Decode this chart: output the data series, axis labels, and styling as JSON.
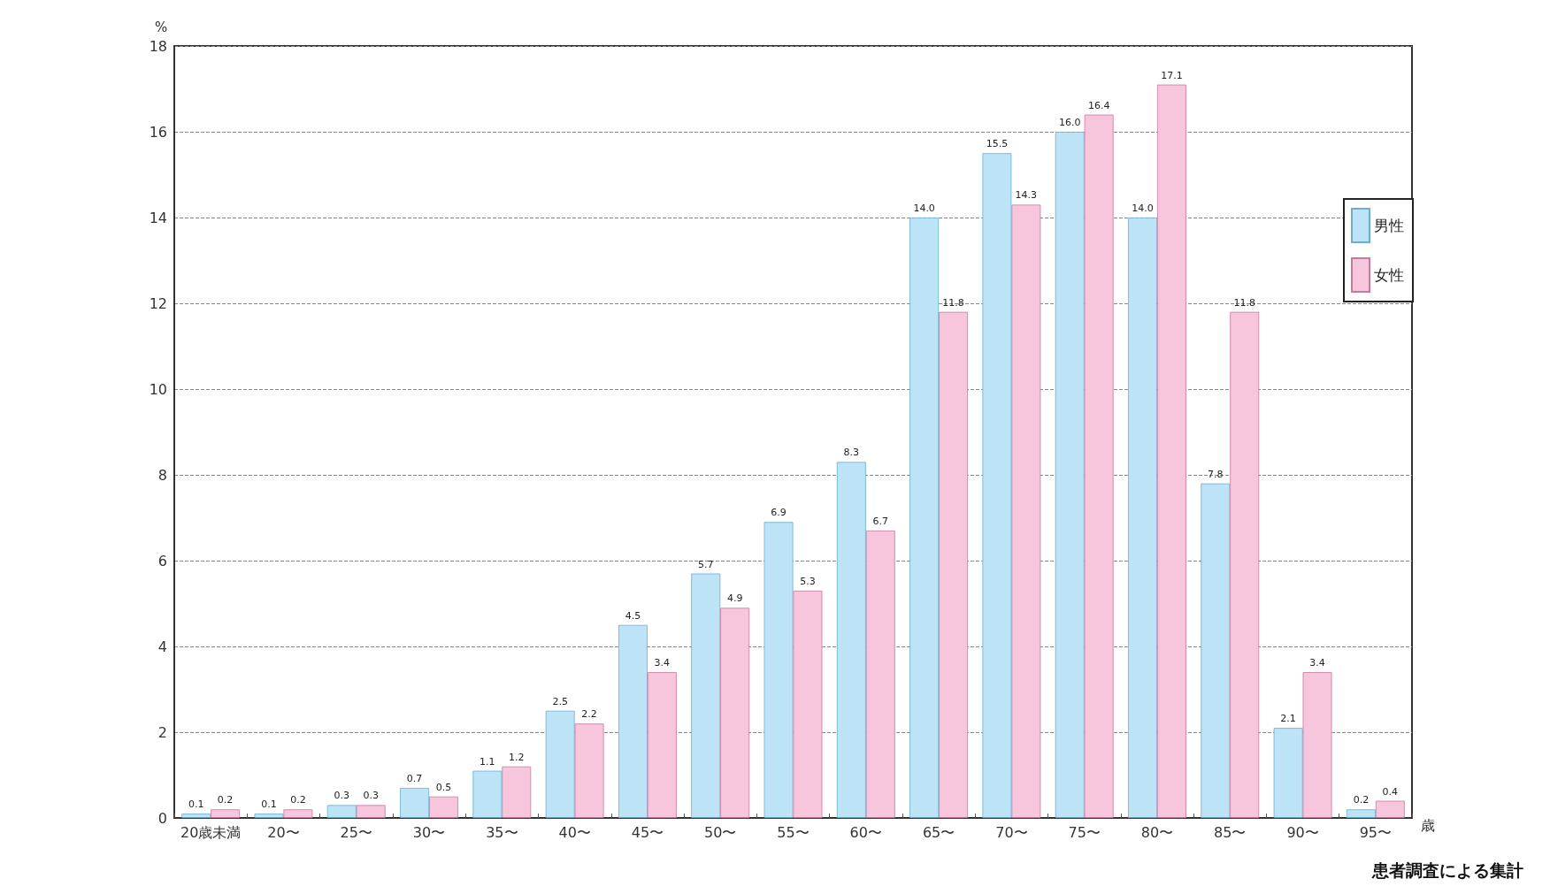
{
  "chart_data": {
    "type": "bar",
    "ylabel": "%",
    "xlabel": "歳",
    "annotations": [
      "患者調査による集計"
    ],
    "categories": [
      "20歳未満",
      "20〜",
      "25〜",
      "30〜",
      "35〜",
      "40〜",
      "45〜",
      "50〜",
      "55〜",
      "60〜",
      "65〜",
      "70〜",
      "75〜",
      "80〜",
      "85〜",
      "90〜",
      "95〜"
    ],
    "series": [
      {
        "name": "男性",
        "color": "#bde3f7",
        "values": [
          0.1,
          0.1,
          0.3,
          0.7,
          1.1,
          2.5,
          4.5,
          5.7,
          6.9,
          8.3,
          14.0,
          15.5,
          16.0,
          14.0,
          7.8,
          2.1,
          0.2
        ],
        "value_labels": [
          "0.1",
          "0.1",
          "0.3",
          "0.7",
          "1.1",
          "2.5",
          "4.5",
          "5.7",
          "6.9",
          "8.3",
          "14.0",
          "15.5",
          "16.0",
          "14.0",
          "7.8",
          "2.1",
          "0.2"
        ]
      },
      {
        "name": "女性",
        "color": "#f7c5dc",
        "values": [
          0.2,
          0.2,
          0.3,
          0.5,
          1.2,
          2.2,
          3.4,
          4.9,
          5.3,
          6.7,
          11.8,
          14.3,
          16.4,
          17.1,
          11.8,
          3.4,
          0.4
        ],
        "value_labels": [
          "0.2",
          "0.2",
          "0.3",
          "0.5",
          "1.2",
          "2.2",
          "3.4",
          "4.9",
          "5.3",
          "6.7",
          "11.8",
          "14.3",
          "16.4",
          "17.1",
          "11.8",
          "3.4",
          "0.4"
        ]
      }
    ],
    "ylim": [
      0,
      18
    ],
    "yticks": [
      0,
      2,
      4,
      6,
      8,
      10,
      12,
      14,
      16,
      18
    ],
    "grid": "y",
    "legend": "top right"
  }
}
